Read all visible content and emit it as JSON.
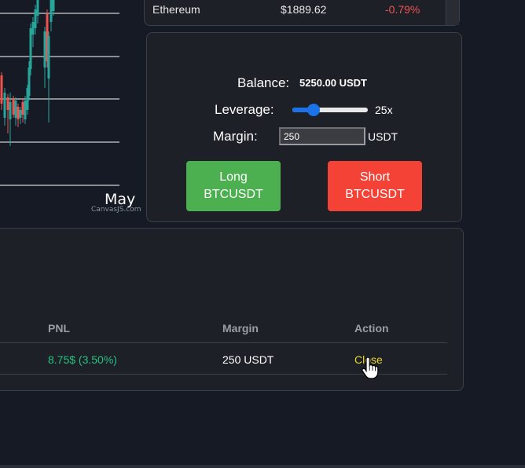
{
  "chart": {
    "month_label": "May",
    "credit": "CanvasJS.com"
  },
  "market": {
    "row": {
      "name": "Ethereum",
      "price": "$1889.62",
      "change": "-0.79%"
    }
  },
  "trade": {
    "balance_label": "Balance:",
    "balance_value": "5250.00 USDT",
    "leverage_label": "Leverage:",
    "leverage_value": "25x",
    "leverage_fraction": 0.28,
    "margin_label": "Margin:",
    "margin_input_value": "250",
    "margin_unit": "USDT",
    "long_button": {
      "line1": "Long",
      "line2": "BTCUSDT"
    },
    "short_button": {
      "line1": "Short",
      "line2": "BTCUSDT"
    }
  },
  "positions": {
    "headers": {
      "pnl": "PNL",
      "margin": "Margin",
      "action": "Action"
    },
    "rows": [
      {
        "pnl": "8.75$ (3.50%)",
        "margin": "250 USDT",
        "action": "Close"
      }
    ]
  },
  "colors": {
    "background": "#161a25",
    "panel": "#1e2028",
    "long": "#4caf50",
    "short": "#f44336",
    "profit": "#26c281",
    "loss": "#ef5350",
    "action": "#e6d52a",
    "accent": "#1a73e8"
  },
  "icons": {
    "cursor": "hand-pointer-icon"
  }
}
